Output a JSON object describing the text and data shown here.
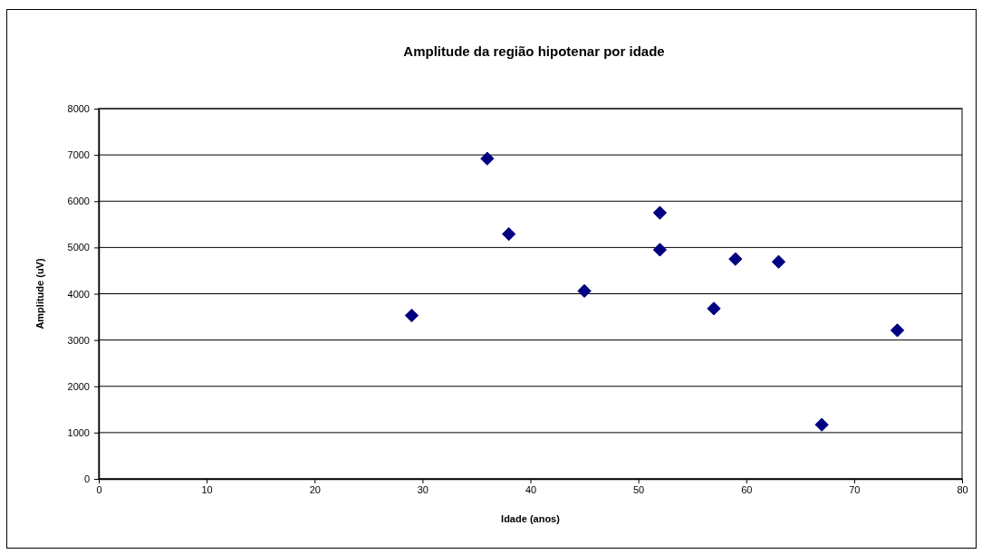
{
  "chart_data": {
    "type": "scatter",
    "title": "Amplitude da região hipotenar por idade",
    "xlabel": "Idade (anos)",
    "ylabel": "Amplitude (uV)",
    "x": [
      29,
      36,
      38,
      45,
      52,
      52,
      57,
      59,
      63,
      67,
      74
    ],
    "series": [
      {
        "color": "#000080",
        "values": [
          3530,
          6920,
          5290,
          4060,
          5750,
          4950,
          3680,
          4750,
          4690,
          1170,
          3210
        ]
      }
    ],
    "xlim": [
      0,
      80
    ],
    "xticks": [
      0,
      10,
      20,
      30,
      40,
      50,
      60,
      70,
      80
    ],
    "ylim": [
      0,
      8000
    ],
    "yticks": [
      0,
      1000,
      2000,
      3000,
      4000,
      5000,
      6000,
      7000,
      8000
    ],
    "grid": "y",
    "marker": "diamond"
  }
}
